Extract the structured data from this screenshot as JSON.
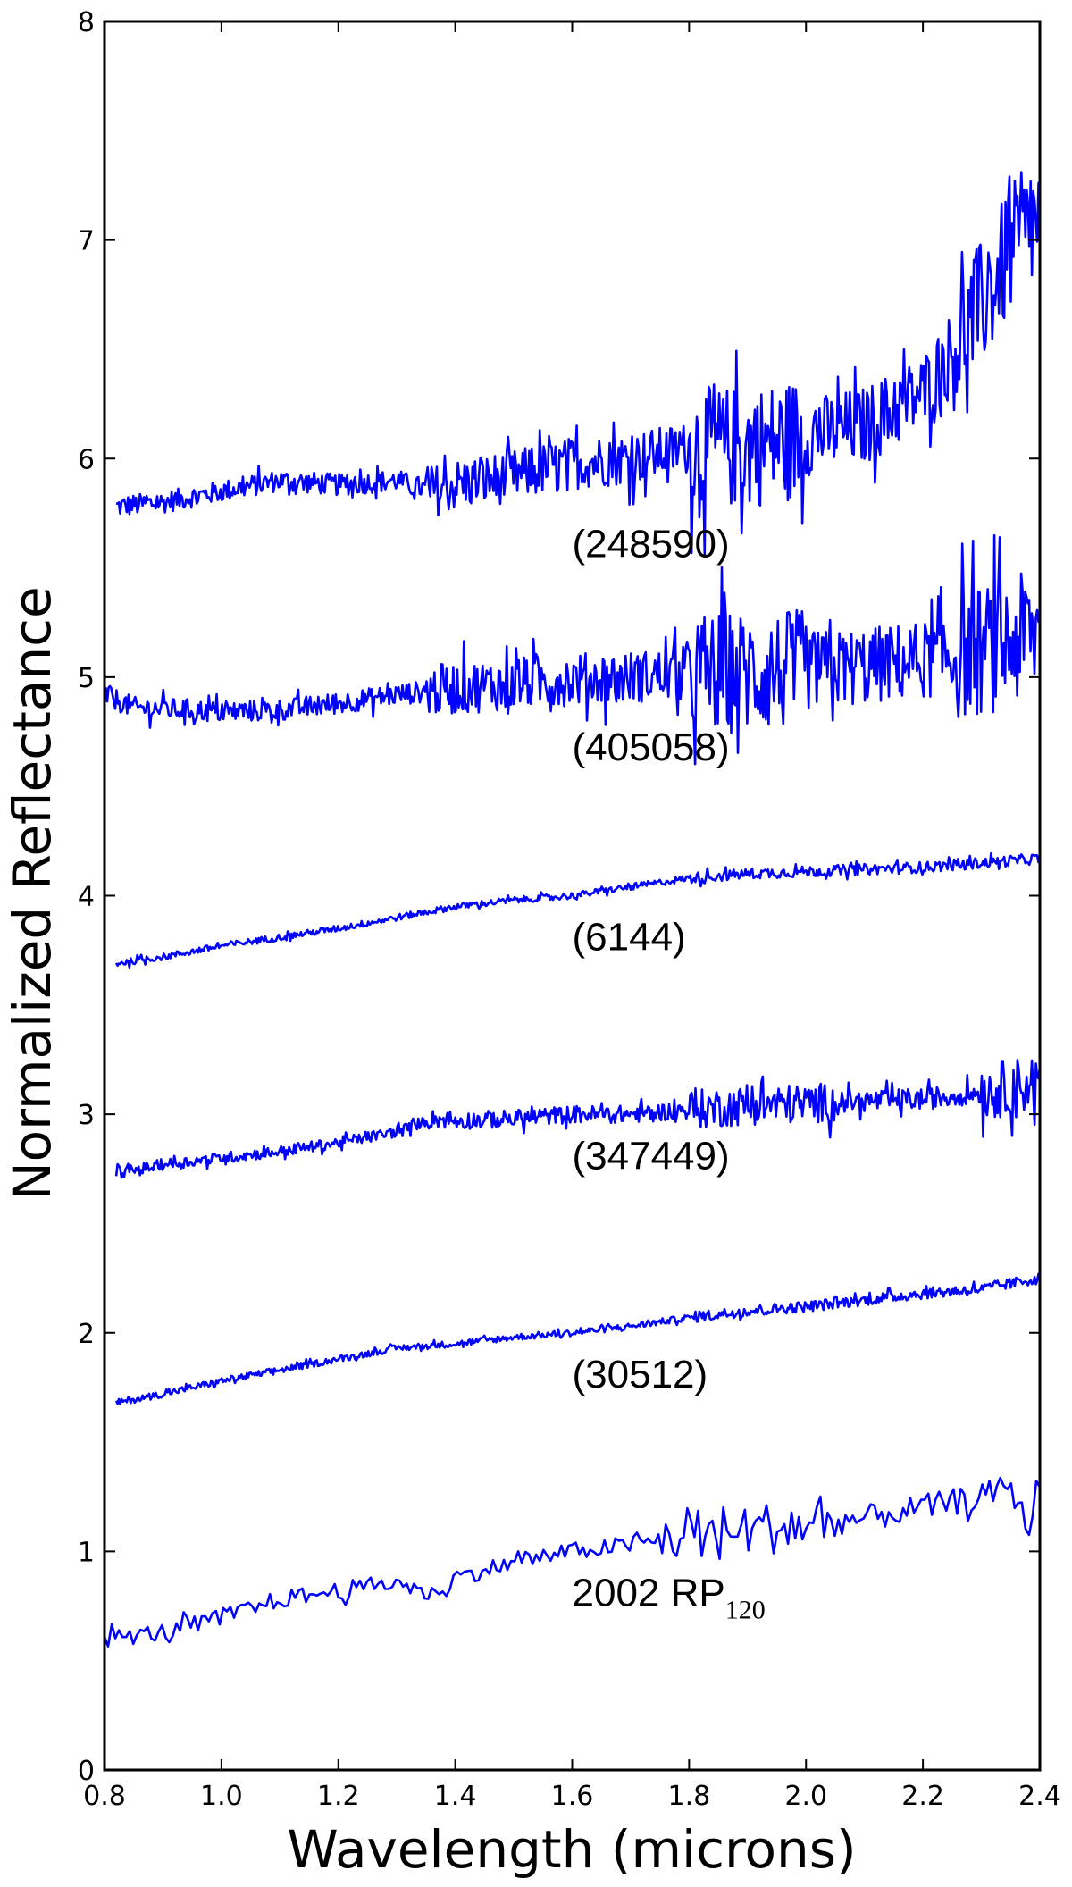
{
  "chart_data": {
    "type": "line",
    "xlabel": "Wavelength (microns)",
    "ylabel": "Normalized Reflectance",
    "xlim": [
      0.8,
      2.4
    ],
    "ylim": [
      0,
      8
    ],
    "xticks": [
      "0.8",
      "1.0",
      "1.2",
      "1.4",
      "1.6",
      "1.8",
      "2.0",
      "2.2",
      "2.4"
    ],
    "yticks": [
      "0",
      "1",
      "2",
      "3",
      "4",
      "5",
      "6",
      "7",
      "8"
    ],
    "grid": false,
    "legend": "none",
    "line_color": "#0000ff",
    "series": [
      {
        "label": "(248590)",
        "label_pos": [
          1.6,
          5.55
        ],
        "noise": "high",
        "anchors": [
          [
            0.82,
            5.78
          ],
          [
            0.9,
            5.8
          ],
          [
            1.0,
            5.85
          ],
          [
            1.1,
            5.9
          ],
          [
            1.2,
            5.88
          ],
          [
            1.3,
            5.9
          ],
          [
            1.36,
            5.85
          ],
          [
            1.4,
            5.88
          ],
          [
            1.5,
            5.92
          ],
          [
            1.6,
            5.98
          ],
          [
            1.7,
            6.0
          ],
          [
            1.8,
            6.05
          ],
          [
            1.9,
            6.05
          ],
          [
            2.0,
            6.1
          ],
          [
            2.1,
            6.15
          ],
          [
            2.2,
            6.3
          ],
          [
            2.3,
            6.7
          ],
          [
            2.35,
            6.95
          ],
          [
            2.4,
            7.1
          ]
        ]
      },
      {
        "label": "(405058)",
        "label_pos": [
          1.6,
          4.62
        ],
        "noise": "high",
        "anchors": [
          [
            0.8,
            4.92
          ],
          [
            0.85,
            4.86
          ],
          [
            0.95,
            4.85
          ],
          [
            1.0,
            4.84
          ],
          [
            1.1,
            4.85
          ],
          [
            1.2,
            4.88
          ],
          [
            1.3,
            4.92
          ],
          [
            1.4,
            4.95
          ],
          [
            1.5,
            4.97
          ],
          [
            1.6,
            4.99
          ],
          [
            1.7,
            5.0
          ],
          [
            1.8,
            5.02
          ],
          [
            1.9,
            5.02
          ],
          [
            2.0,
            5.03
          ],
          [
            2.1,
            5.05
          ],
          [
            2.2,
            5.08
          ],
          [
            2.3,
            5.12
          ],
          [
            2.4,
            5.2
          ]
        ]
      },
      {
        "label": "(6144)",
        "label_pos": [
          1.6,
          3.75
        ],
        "noise": "low",
        "anchors": [
          [
            0.82,
            3.69
          ],
          [
            0.9,
            3.72
          ],
          [
            1.0,
            3.77
          ],
          [
            1.1,
            3.81
          ],
          [
            1.2,
            3.85
          ],
          [
            1.3,
            3.9
          ],
          [
            1.4,
            3.95
          ],
          [
            1.5,
            3.98
          ],
          [
            1.6,
            4.0
          ],
          [
            1.7,
            4.04
          ],
          [
            1.8,
            4.08
          ],
          [
            1.9,
            4.1
          ],
          [
            2.0,
            4.11
          ],
          [
            2.1,
            4.12
          ],
          [
            2.2,
            4.13
          ],
          [
            2.3,
            4.15
          ],
          [
            2.4,
            4.17
          ]
        ]
      },
      {
        "label": "(347449)",
        "label_pos": [
          1.6,
          2.75
        ],
        "noise": "mid",
        "anchors": [
          [
            0.82,
            2.73
          ],
          [
            0.9,
            2.77
          ],
          [
            1.0,
            2.8
          ],
          [
            1.1,
            2.83
          ],
          [
            1.2,
            2.87
          ],
          [
            1.3,
            2.92
          ],
          [
            1.36,
            2.98
          ],
          [
            1.4,
            2.97
          ],
          [
            1.5,
            2.98
          ],
          [
            1.6,
            3.0
          ],
          [
            1.7,
            3.0
          ],
          [
            1.8,
            3.02
          ],
          [
            1.9,
            3.04
          ],
          [
            2.0,
            3.05
          ],
          [
            2.1,
            3.06
          ],
          [
            2.2,
            3.07
          ],
          [
            2.3,
            3.1
          ],
          [
            2.4,
            3.15
          ]
        ]
      },
      {
        "label": "(30512)",
        "label_pos": [
          1.6,
          1.75
        ],
        "noise": "low",
        "anchors": [
          [
            0.82,
            1.68
          ],
          [
            0.9,
            1.72
          ],
          [
            1.0,
            1.78
          ],
          [
            1.1,
            1.83
          ],
          [
            1.2,
            1.88
          ],
          [
            1.3,
            1.93
          ],
          [
            1.4,
            1.95
          ],
          [
            1.5,
            1.98
          ],
          [
            1.6,
            2.0
          ],
          [
            1.7,
            2.03
          ],
          [
            1.8,
            2.07
          ],
          [
            1.9,
            2.1
          ],
          [
            2.0,
            2.12
          ],
          [
            2.1,
            2.15
          ],
          [
            2.2,
            2.18
          ],
          [
            2.3,
            2.2
          ],
          [
            2.4,
            2.25
          ]
        ]
      },
      {
        "label": "2002 RP",
        "label_sub": "120",
        "label_pos": [
          1.6,
          0.75
        ],
        "noise": "mixed",
        "anchors": [
          [
            0.8,
            0.6
          ],
          [
            0.9,
            0.63
          ],
          [
            1.0,
            0.7
          ],
          [
            1.1,
            0.78
          ],
          [
            1.2,
            0.82
          ],
          [
            1.3,
            0.86
          ],
          [
            1.36,
            0.8
          ],
          [
            1.4,
            0.88
          ],
          [
            1.5,
            0.95
          ],
          [
            1.6,
            1.0
          ],
          [
            1.7,
            1.03
          ],
          [
            1.8,
            1.08
          ],
          [
            1.9,
            1.1
          ],
          [
            2.0,
            1.12
          ],
          [
            2.1,
            1.15
          ],
          [
            2.2,
            1.2
          ],
          [
            2.3,
            1.25
          ],
          [
            2.35,
            1.3
          ],
          [
            2.38,
            1.1
          ],
          [
            2.4,
            1.35
          ]
        ]
      }
    ]
  }
}
